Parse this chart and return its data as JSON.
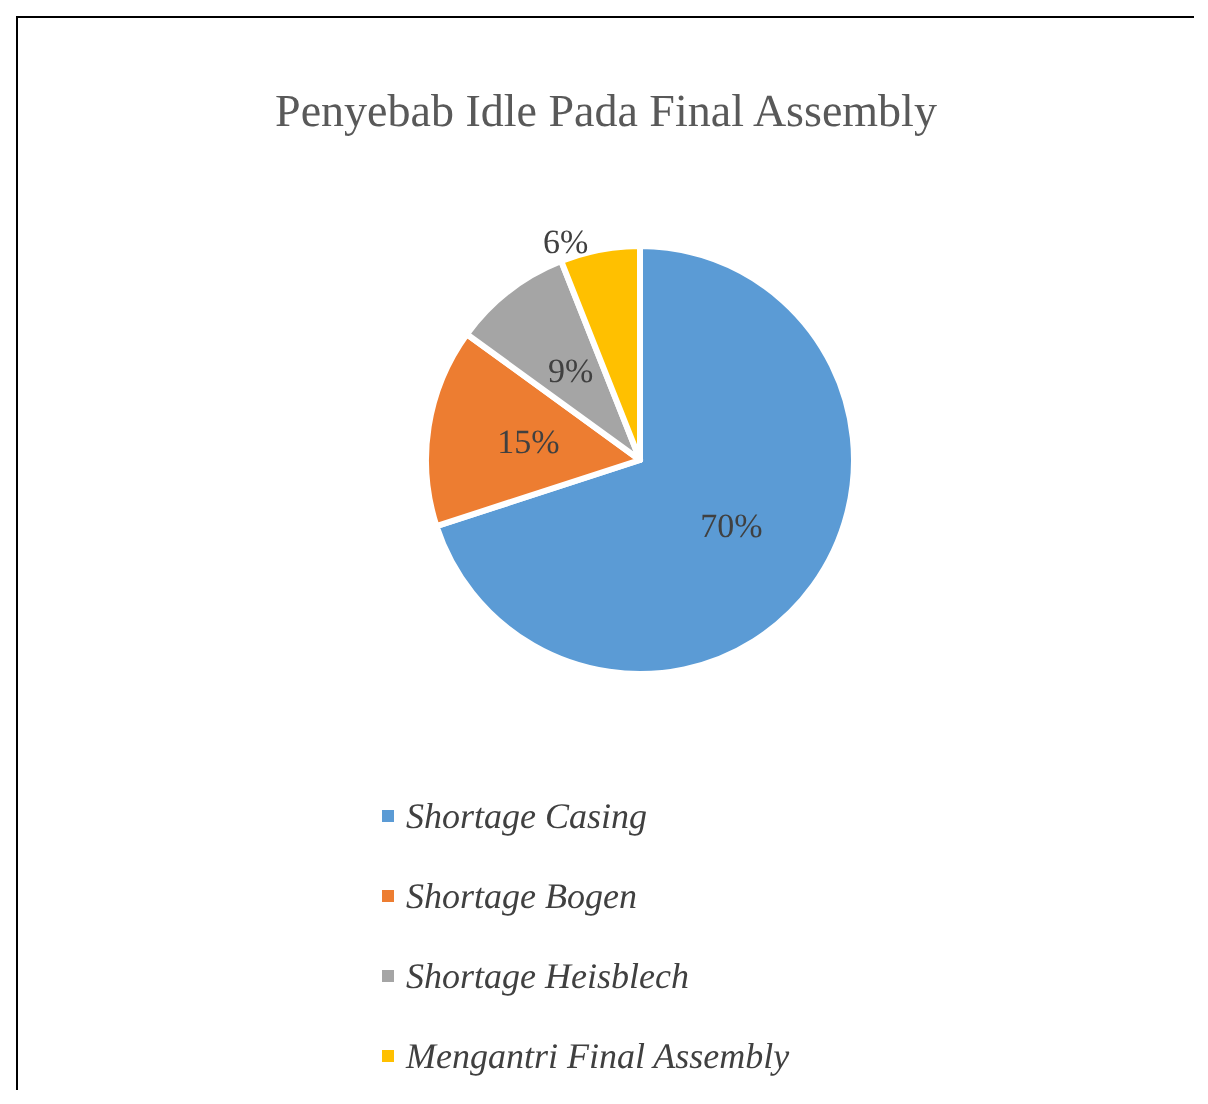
{
  "chart_data": {
    "type": "pie",
    "title": "Penyebab Idle Pada Final Assembly",
    "categories": [
      "Shortage Casing",
      "Shortage Bogen",
      "Shortage Heisblech",
      "Mengantri Final Assembly"
    ],
    "values": [
      70,
      15,
      9,
      6
    ],
    "colors": [
      "#5b9bd5",
      "#ed7d31",
      "#a5a5a5",
      "#ffc000"
    ],
    "value_labels": [
      "70%",
      "15%",
      "9%",
      "6%"
    ],
    "legend": "bottom"
  }
}
